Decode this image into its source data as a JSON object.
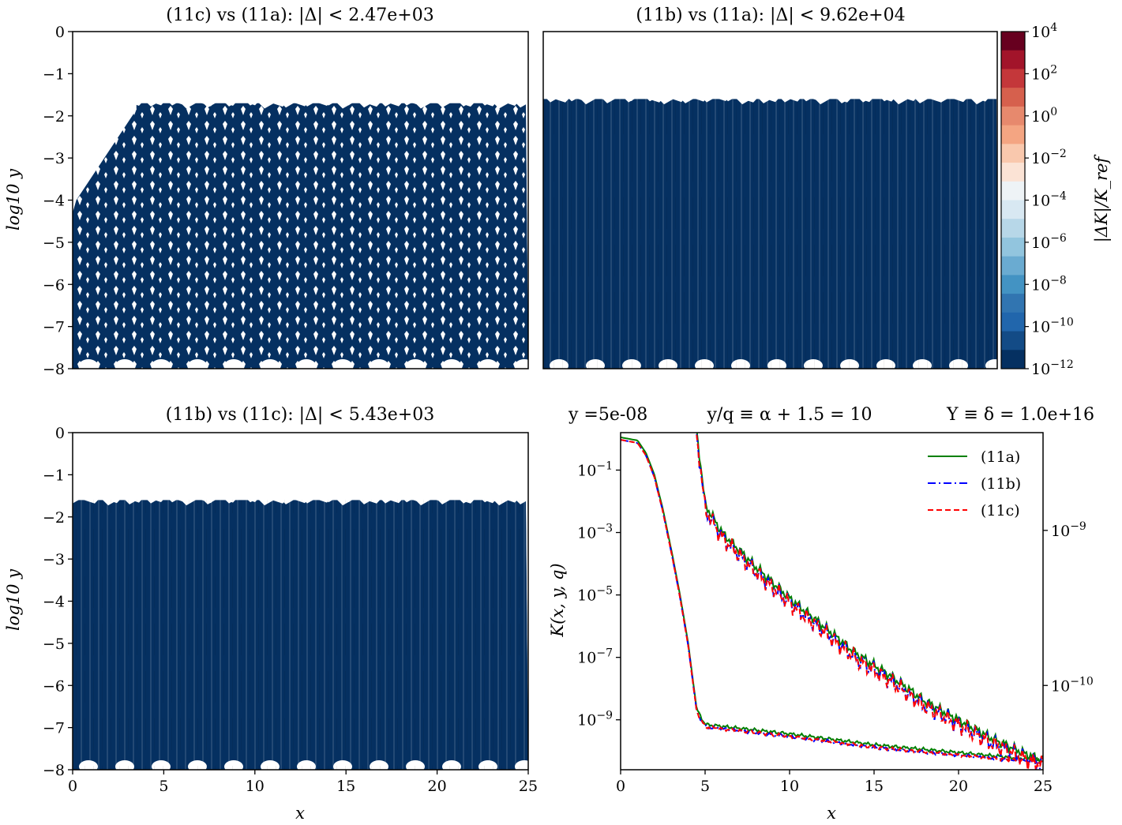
{
  "chart_data": [
    {
      "type": "heatmap",
      "title": "(11c) vs (11a): |Δ| < 2.47e+03",
      "ylabel": "log10 y",
      "xlabel": "",
      "xlim": [
        0,
        25
      ],
      "ylim": [
        -8,
        0
      ],
      "yticks": [
        "0",
        "−1",
        "−2",
        "−3",
        "−4",
        "−5",
        "−6",
        "−7",
        "−8"
      ],
      "data_top": -1.7,
      "ramp_end_x": 3.5
    },
    {
      "type": "heatmap",
      "title": "(11b) vs (11a): |Δ| < 9.62e+04",
      "xlim": [
        0,
        25
      ],
      "ylim": [
        -8,
        0
      ],
      "data_top": -1.6,
      "colorbar": {
        "label": "|ΔK|/K_ref",
        "ticks": [
          "10^4",
          "10^2",
          "10^0",
          "10^-2",
          "10^-4",
          "10^-6",
          "10^-8",
          "10^-10",
          "10^-12"
        ],
        "colors": [
          "#67001f",
          "#a2142a",
          "#c4373a",
          "#d6604d",
          "#e7896d",
          "#f4a582",
          "#f9c8ad",
          "#fbe3d5",
          "#eef3f6",
          "#d8e8f2",
          "#b7d7e8",
          "#92c5de",
          "#6aabd1",
          "#4393c3",
          "#3175b1",
          "#2166ac",
          "#134b86",
          "#053061"
        ]
      }
    },
    {
      "type": "heatmap",
      "title": "(11b) vs (11c): |Δ| < 5.43e+03",
      "xlabel": "x",
      "ylabel": "log10 y",
      "xlim": [
        0,
        25
      ],
      "ylim": [
        -8,
        0
      ],
      "xticks": [
        "0",
        "5",
        "10",
        "15",
        "20",
        "25"
      ],
      "yticks": [
        "0",
        "−1",
        "−2",
        "−3",
        "−4",
        "−5",
        "−6",
        "−7",
        "−8"
      ],
      "data_top": -1.6
    },
    {
      "type": "line",
      "title_left": "y =5e-08",
      "title_mid": "y/q ≡ α + 1.5 = 10",
      "title_right": "Y ≡ δ = 1.0e+16",
      "xlabel": "x",
      "ylabel": "K(x, y, q)",
      "xlim": [
        0,
        25
      ],
      "ylim_log10": [
        -10.6,
        0.2
      ],
      "yticks": [
        "10^-1",
        "10^-3",
        "10^-5",
        "10^-7",
        "10^-9"
      ],
      "right_yticks": [
        "10^-9",
        "10^-10"
      ],
      "xticks": [
        "0",
        "5",
        "10",
        "15",
        "20",
        "25"
      ],
      "legend_position": "top-right",
      "series": [
        {
          "name": "(11a)",
          "color": "#008000",
          "style": "solid"
        },
        {
          "name": "(11b)",
          "color": "#0000ff",
          "style": "dashdot"
        },
        {
          "name": "(11c)",
          "color": "#ff0000",
          "style": "dashed"
        }
      ],
      "curve_left": {
        "x": [
          0,
          1,
          1.5,
          2,
          2.5,
          3,
          3.5,
          4,
          4.5,
          5,
          10,
          15,
          20,
          25
        ],
        "log10_K": [
          0.0,
          -0.1,
          -0.5,
          -1.2,
          -2.3,
          -3.6,
          -5.0,
          -6.6,
          -8.7,
          -9.2,
          -9.5,
          -9.85,
          -10.1,
          -10.35
        ]
      },
      "curve_right": {
        "x": [
          4.5,
          5,
          6,
          8,
          10,
          12,
          14,
          16,
          18,
          20,
          22,
          24,
          25
        ],
        "log10_K": [
          0.2,
          -2.2,
          -3.1,
          -4.2,
          -5.2,
          -6.1,
          -7.0,
          -7.7,
          -8.5,
          -9.1,
          -9.7,
          -10.2,
          -10.4
        ]
      }
    }
  ]
}
